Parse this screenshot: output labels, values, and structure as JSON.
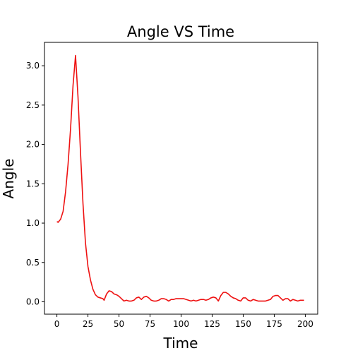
{
  "chart_data": {
    "type": "line",
    "title": "Angle VS Time",
    "x_label": "Time",
    "y_label": "Angle",
    "color": "#ee1111",
    "x": [
      0,
      1,
      3,
      5,
      7,
      9,
      11,
      13,
      15,
      17,
      19,
      21,
      23,
      25,
      27,
      29,
      31,
      33,
      35,
      37,
      38,
      40,
      42,
      44,
      46,
      48,
      50,
      52,
      54,
      56,
      58,
      60,
      62,
      64,
      66,
      68,
      70,
      72,
      74,
      76,
      78,
      80,
      82,
      84,
      86,
      88,
      90,
      92,
      94,
      96,
      98,
      100,
      102,
      104,
      106,
      108,
      110,
      112,
      114,
      116,
      118,
      120,
      122,
      124,
      126,
      128,
      130,
      132,
      134,
      136,
      138,
      140,
      142,
      144,
      146,
      148,
      150,
      152,
      154,
      156,
      158,
      160,
      162,
      164,
      166,
      168,
      170,
      172,
      174,
      176,
      178,
      180,
      182,
      184,
      186,
      188,
      190,
      192,
      194,
      196,
      198,
      199
    ],
    "values": [
      1.02,
      1.01,
      1.05,
      1.15,
      1.4,
      1.75,
      2.2,
      2.75,
      3.13,
      2.6,
      1.9,
      1.25,
      0.75,
      0.45,
      0.28,
      0.16,
      0.09,
      0.06,
      0.05,
      0.04,
      0.02,
      0.1,
      0.14,
      0.13,
      0.1,
      0.09,
      0.07,
      0.04,
      0.01,
      0.02,
      0.01,
      0.01,
      0.02,
      0.05,
      0.06,
      0.03,
      0.06,
      0.07,
      0.05,
      0.02,
      0.01,
      0.01,
      0.02,
      0.04,
      0.04,
      0.03,
      0.01,
      0.03,
      0.03,
      0.04,
      0.04,
      0.04,
      0.04,
      0.03,
      0.02,
      0.01,
      0.02,
      0.01,
      0.02,
      0.03,
      0.03,
      0.02,
      0.03,
      0.05,
      0.06,
      0.05,
      0.01,
      0.08,
      0.12,
      0.12,
      0.1,
      0.07,
      0.05,
      0.04,
      0.02,
      0.01,
      0.05,
      0.05,
      0.02,
      0.01,
      0.03,
      0.02,
      0.01,
      0.01,
      0.01,
      0.01,
      0.02,
      0.03,
      0.07,
      0.08,
      0.08,
      0.05,
      0.02,
      0.04,
      0.04,
      0.01,
      0.03,
      0.02,
      0.01,
      0.02,
      0.02,
      0.02
    ],
    "xlim": [
      -10,
      210
    ],
    "ylim": [
      -0.157,
      3.297
    ],
    "xticks": [
      0,
      25,
      50,
      75,
      100,
      125,
      150,
      175,
      200
    ],
    "yticks": [
      {
        "value": 0,
        "label": "0.0"
      },
      {
        "value": 0.5,
        "label": "0.5"
      },
      {
        "value": 1,
        "label": "1.0"
      },
      {
        "value": 1.5,
        "label": "1.5"
      },
      {
        "value": 2,
        "label": "2.0"
      },
      {
        "value": 2.5,
        "label": "2.5"
      },
      {
        "value": 3,
        "label": "3.0"
      }
    ],
    "grid": false
  }
}
